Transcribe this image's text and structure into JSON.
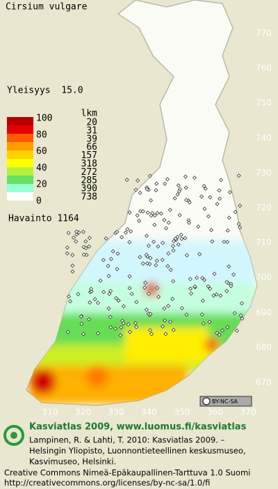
{
  "header": {
    "title": "Cirsium vulgare",
    "frequency": "Yleisyys  15.0"
  },
  "legend": {
    "scale_labels": [
      100,
      80,
      60,
      40,
      20,
      0
    ],
    "count_header": "lkm",
    "counts": [
      20,
      31,
      39,
      66,
      157,
      318,
      272,
      285,
      390,
      738
    ],
    "colors": [
      "#b80000",
      "#e40000",
      "#ff5a00",
      "#ff9c00",
      "#ffd200",
      "#ffff00",
      "#b6f03c",
      "#66e066",
      "#98ffd2",
      "#ffffff"
    ],
    "observation_label": "Havainto 1164"
  },
  "map": {
    "y_labels": [
      770,
      760,
      750,
      740,
      730,
      720,
      710,
      700,
      690,
      680,
      670
    ],
    "x_labels": [
      310,
      320,
      330,
      340,
      350,
      360,
      370
    ],
    "license_badge": "BY-NC-SA"
  },
  "footer": {
    "brand": "Kasviatlas 2009, www.luomus.fi/kasviatlas",
    "citation": [
      "Lampinen, R. & Lahti, T. 2010: Kasviatlas 2009. –",
      "Helsingin Yliopisto, Luonnontieteellinen keskusmuseo,",
      "Kasvimuseo, Helsinki."
    ],
    "license": [
      "Creative Commons Nimeä-Epäkaupallinen-Tarttuva 1.0 Suomi",
      "http://creativecommons.org/licenses/by-nc-sa/1.0/fi"
    ]
  }
}
